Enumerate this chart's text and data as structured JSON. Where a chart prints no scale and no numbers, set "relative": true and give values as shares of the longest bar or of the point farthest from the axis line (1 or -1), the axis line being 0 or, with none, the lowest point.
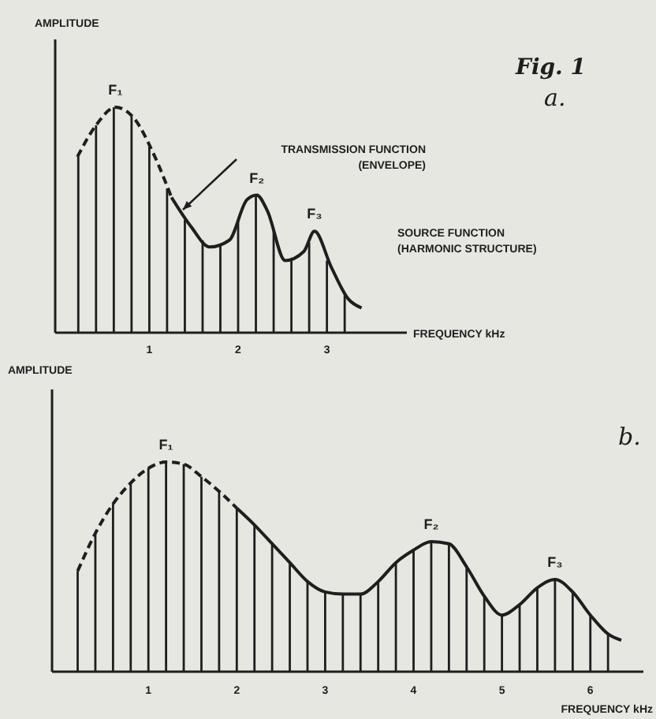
{
  "chart_data": [
    {
      "type": "line",
      "xlabel": "FREQUENCY kHz",
      "ylabel": "AMPLITUDE",
      "relative": true,
      "xlim": [
        -0.06,
        3.9
      ],
      "xticks": [
        1,
        2,
        3
      ],
      "tick_labels": "x",
      "series": [
        {
          "type": "bar",
          "color": "#1e1e1e",
          "x": [
            0.2,
            0.4,
            0.6,
            0.8,
            1.0,
            1.2,
            1.4,
            1.6,
            1.8,
            2.0,
            2.2,
            2.4,
            2.6,
            2.8,
            3.0,
            3.2
          ],
          "values": [
            0.78,
            0.92,
            1.0,
            0.96,
            0.83,
            0.64,
            0.5,
            0.41,
            0.39,
            0.5,
            0.61,
            0.45,
            0.33,
            0.4,
            0.32,
            0.17
          ]
        },
        {
          "line_style": "dashed",
          "color": "#1e1e1e",
          "x": [
            0.19,
            0.4,
            0.62,
            0.83,
            1.04,
            1.25
          ],
          "values": [
            0.78,
            0.92,
            1.0,
            0.95,
            0.8,
            0.6
          ]
        },
        {
          "line_style": "solid",
          "color": "#1e1e1e",
          "x": [
            1.25,
            1.47,
            1.68,
            1.9,
            2.1,
            2.21,
            2.33,
            2.53,
            2.74,
            2.86,
            3.05,
            3.24,
            3.39
          ],
          "values": [
            0.6,
            0.47,
            0.38,
            0.41,
            0.59,
            0.61,
            0.54,
            0.32,
            0.36,
            0.45,
            0.29,
            0.15,
            0.11
          ]
        }
      ],
      "annotations": [
        {
          "text": "F₁",
          "x": 0.62,
          "y": 1.0
        },
        {
          "text": "F₂",
          "x": 2.21,
          "y": 0.61
        },
        {
          "text": "F₃",
          "x": 2.86,
          "y": 0.45
        },
        "TRANSMISSION FUNCTION\n(ENVELOPE)",
        "SOURCE FUNCTION\n(HARMONIC STRUCTURE)",
        "Fig. 1",
        "a."
      ]
    },
    {
      "type": "line",
      "title": "b.",
      "xlabel": "FREQUENCY kHz",
      "ylabel": "AMPLITUDE",
      "relative": true,
      "xlim": [
        -0.09,
        6.6
      ],
      "xticks": [
        1,
        2,
        3,
        4,
        5,
        6
      ],
      "tick_labels": "x",
      "series": [
        {
          "type": "bar",
          "color": "#1e1e1e",
          "x": [
            0.2,
            0.4,
            0.6,
            0.8,
            1.0,
            1.2,
            1.4,
            1.6,
            1.8,
            2.0,
            2.2,
            2.4,
            2.6,
            2.8,
            3.0,
            3.2,
            3.4,
            3.6,
            3.8,
            4.0,
            4.2,
            4.4,
            4.6,
            4.8,
            5.0,
            5.2,
            5.4,
            5.6,
            5.8,
            6.0,
            6.2
          ],
          "values": [
            0.48,
            0.66,
            0.8,
            0.9,
            0.97,
            1.0,
            0.99,
            0.93,
            0.86,
            0.78,
            0.7,
            0.61,
            0.52,
            0.43,
            0.38,
            0.37,
            0.37,
            0.43,
            0.52,
            0.58,
            0.62,
            0.61,
            0.5,
            0.36,
            0.27,
            0.32,
            0.4,
            0.44,
            0.38,
            0.27,
            0.18
          ]
        },
        {
          "line_style": "dashed",
          "color": "#1e1e1e",
          "x": [
            0.2,
            0.4,
            0.6,
            0.8,
            1.0,
            1.2,
            1.4,
            1.6,
            1.8,
            2.0
          ],
          "values": [
            0.48,
            0.66,
            0.8,
            0.9,
            0.97,
            1.0,
            0.99,
            0.93,
            0.86,
            0.78
          ]
        },
        {
          "line_style": "solid",
          "color": "#1e1e1e",
          "x": [
            2.0,
            2.2,
            2.4,
            2.6,
            2.8,
            3.0,
            3.2,
            3.4,
            3.6,
            3.8,
            4.0,
            4.2,
            4.4,
            4.6,
            4.8,
            5.0,
            5.2,
            5.4,
            5.6,
            5.8,
            6.0,
            6.2,
            6.35
          ],
          "values": [
            0.78,
            0.7,
            0.61,
            0.52,
            0.43,
            0.38,
            0.37,
            0.37,
            0.43,
            0.52,
            0.58,
            0.62,
            0.61,
            0.5,
            0.36,
            0.27,
            0.32,
            0.4,
            0.44,
            0.38,
            0.27,
            0.18,
            0.15
          ]
        }
      ],
      "annotations": [
        {
          "text": "F₁",
          "x": 1.2,
          "y": 1.0
        },
        {
          "text": "F₂",
          "x": 4.2,
          "y": 0.62
        },
        {
          "text": "F₃",
          "x": 5.6,
          "y": 0.44
        }
      ]
    }
  ]
}
